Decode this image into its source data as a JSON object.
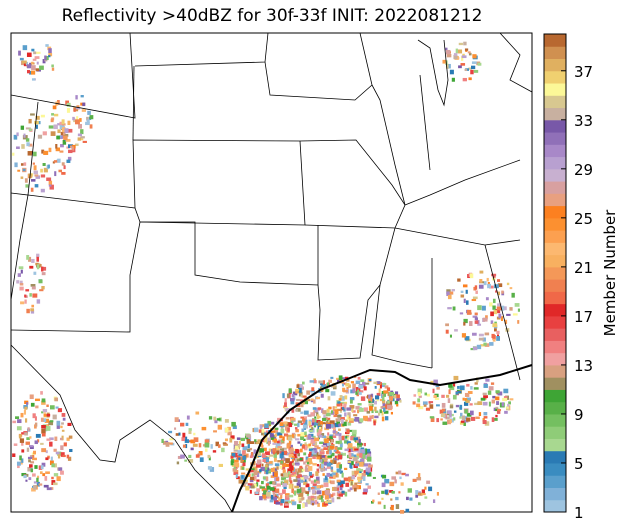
{
  "chart_data": {
    "type": "map",
    "title": "Reflectivity >40dBZ for 30f-33f INIT: 2022081212",
    "colorbar": {
      "label": "Member Number",
      "lim": [
        1,
        40
      ],
      "ticks": [
        1,
        5,
        9,
        13,
        17,
        21,
        25,
        29,
        33,
        37
      ],
      "colors": [
        "#9ec4e0",
        "#80b1d8",
        "#5a9fcc",
        "#3a8cc0",
        "#2a7ab4",
        "#a8d890",
        "#8fcc78",
        "#74bf60",
        "#58b048",
        "#3ea535",
        "#a09060",
        "#d8a080",
        "#f0a0a0",
        "#f08080",
        "#e86060",
        "#e84040",
        "#e02828",
        "#f06848",
        "#f08050",
        "#f49858",
        "#f8b060",
        "#fcb870",
        "#fca050",
        "#fc9030",
        "#fc8020",
        "#e8a080",
        "#d8a0a0",
        "#c8b0d0",
        "#b8a0d0",
        "#a888c8",
        "#9070b8",
        "#7858a8",
        "#c8b0a0",
        "#d8c890",
        "#fcf898",
        "#f0d070",
        "#e0b060",
        "#d09050",
        "#b86830"
      ]
    }
  }
}
